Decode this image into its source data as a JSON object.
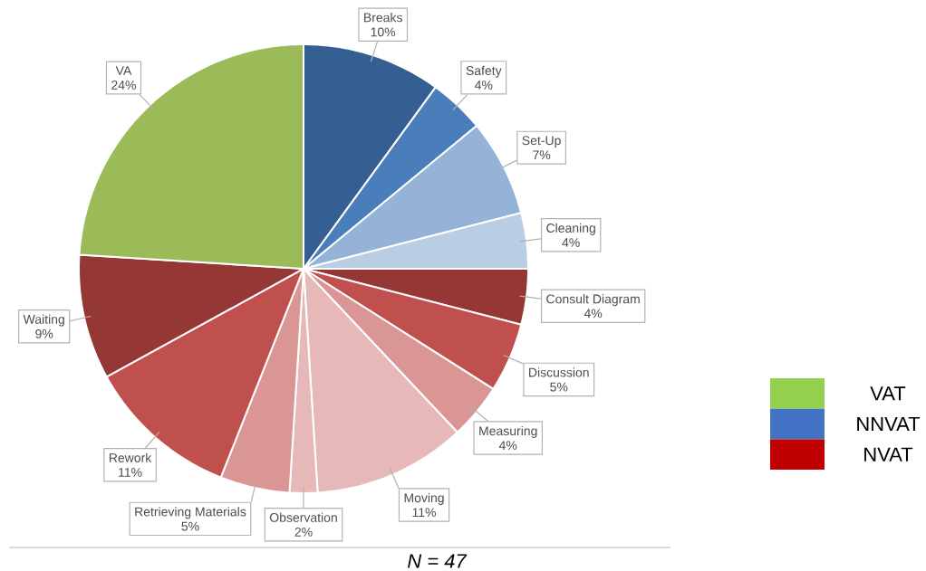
{
  "chart_data": {
    "type": "pie",
    "categories": [
      "Breaks",
      "Safety",
      "Set-Up",
      "Cleaning",
      "Consult Diagram",
      "Discussion",
      "Measuring",
      "Moving",
      "Observation",
      "Retrieving Materials",
      "Rework",
      "Waiting",
      "VA"
    ],
    "values": [
      10,
      4,
      7,
      4,
      4,
      5,
      4,
      11,
      2,
      5,
      11,
      9,
      24
    ],
    "value_labels": [
      "10%",
      "4%",
      "7%",
      "4%",
      "4%",
      "5%",
      "4%",
      "11%",
      "2%",
      "5%",
      "11%",
      "9%",
      "24%"
    ],
    "colors": [
      "#355f93",
      "#4a7ebb",
      "#95b3d7",
      "#b9cde5",
      "#953735",
      "#c0504d",
      "#d99694",
      "#e6b9b8",
      "#e6b9b8",
      "#d99694",
      "#c0504d",
      "#953735",
      "#9bbb59"
    ],
    "annotations": [
      "VAT",
      "NNVAT",
      "NVAT",
      "N = 47"
    ]
  }
}
